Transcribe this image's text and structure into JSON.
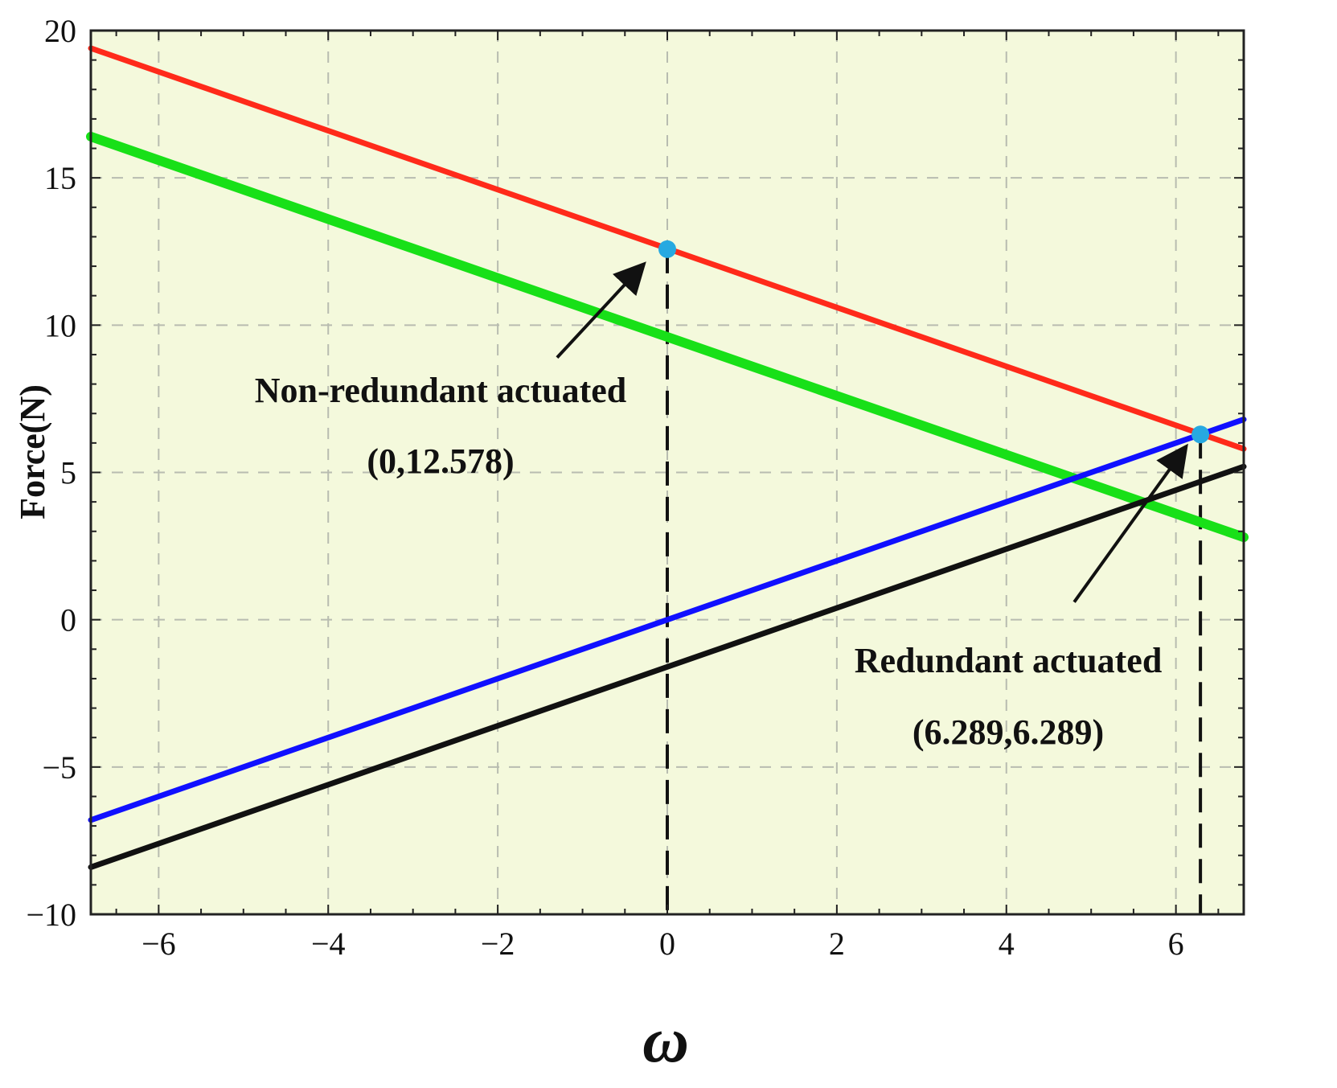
{
  "chart_data": {
    "type": "line",
    "xlabel": "ω",
    "ylabel": "Force(N)",
    "xlim": [
      -6.8,
      6.8
    ],
    "ylim": [
      -10,
      20
    ],
    "x_ticks": [
      -6,
      -4,
      -2,
      0,
      2,
      4,
      6
    ],
    "y_ticks": [
      -10,
      -5,
      0,
      5,
      10,
      15,
      20
    ],
    "x_tick_labels": [
      "−6",
      "−4",
      "−2",
      "0",
      "2",
      "4",
      "6"
    ],
    "y_tick_labels": [
      "−10",
      "−5",
      "0",
      "5",
      "10",
      "15",
      "20"
    ],
    "grid": true,
    "background_color": "#f4f9dc",
    "series": [
      {
        "color": "#ff2a1a",
        "points": [
          [
            -6.8,
            19.4
          ],
          [
            6.8,
            5.8
          ]
        ]
      },
      {
        "color": "#18e018",
        "points": [
          [
            -6.8,
            16.4
          ],
          [
            6.8,
            2.8
          ]
        ]
      },
      {
        "color": "#1010ff",
        "points": [
          [
            -6.8,
            -6.8
          ],
          [
            6.8,
            6.8
          ]
        ]
      },
      {
        "color": "#111111",
        "points": [
          [
            -6.8,
            -8.4
          ],
          [
            6.8,
            5.2
          ]
        ]
      }
    ],
    "highlight_points": [
      {
        "x": 0,
        "y": 12.578,
        "color": "#27a9e1"
      },
      {
        "x": 6.289,
        "y": 6.289,
        "color": "#27a9e1"
      }
    ],
    "vertical_markers": [
      0,
      6.289
    ],
    "annotations": [
      {
        "line1": "Non-redundant actuated",
        "line2": "(0,12.578)",
        "arrow_from": [
          -1.3,
          8.9
        ],
        "arrow_to": [
          -0.3,
          12.0
        ]
      },
      {
        "line1": "Redundant actuated",
        "line2": "(6.289,6.289)",
        "arrow_from": [
          4.8,
          0.6
        ],
        "arrow_to": [
          6.1,
          5.8
        ]
      }
    ]
  }
}
